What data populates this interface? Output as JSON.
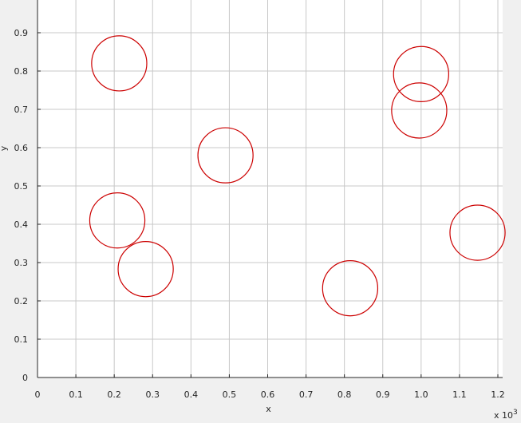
{
  "chart_data": {
    "type": "scatter",
    "title": "",
    "xlabel": "x",
    "ylabel": "y",
    "x_exponent_label": "x 10",
    "x_exponent_power": "3",
    "xlim": [
      0,
      1.2
    ],
    "ylim": [
      0,
      0.9
    ],
    "x_ticks": [
      "0",
      "0.1",
      "0.2",
      "0.3",
      "0.4",
      "0.5",
      "0.6",
      "0.7",
      "0.8",
      "0.9",
      "1.0",
      "1.1",
      "1.2"
    ],
    "x_tick_values": [
      0,
      0.1,
      0.2,
      0.3,
      0.4,
      0.5,
      0.6,
      0.7,
      0.8,
      0.9,
      1.0,
      1.1,
      1.2
    ],
    "y_ticks": [
      "0",
      "0.1",
      "0.2",
      "0.3",
      "0.4",
      "0.5",
      "0.6",
      "0.7",
      "0.8",
      "0.9"
    ],
    "y_tick_values": [
      0,
      0.1,
      0.2,
      0.3,
      0.4,
      0.5,
      0.6,
      0.7,
      0.8,
      0.9
    ],
    "grid": true,
    "marker": "circle",
    "marker_color": "#cc0000",
    "grid_color": "#c8c8c8",
    "axes_background": "#ffffff",
    "circle_radius_y_units": 0.072,
    "points": [
      {
        "x": 0.213,
        "y": 0.82
      },
      {
        "x": 0.49,
        "y": 0.58
      },
      {
        "x": 0.208,
        "y": 0.41
      },
      {
        "x": 0.282,
        "y": 0.283
      },
      {
        "x": 0.815,
        "y": 0.233
      },
      {
        "x": 1.0,
        "y": 0.792
      },
      {
        "x": 0.995,
        "y": 0.697
      },
      {
        "x": 1.147,
        "y": 0.378
      }
    ]
  }
}
